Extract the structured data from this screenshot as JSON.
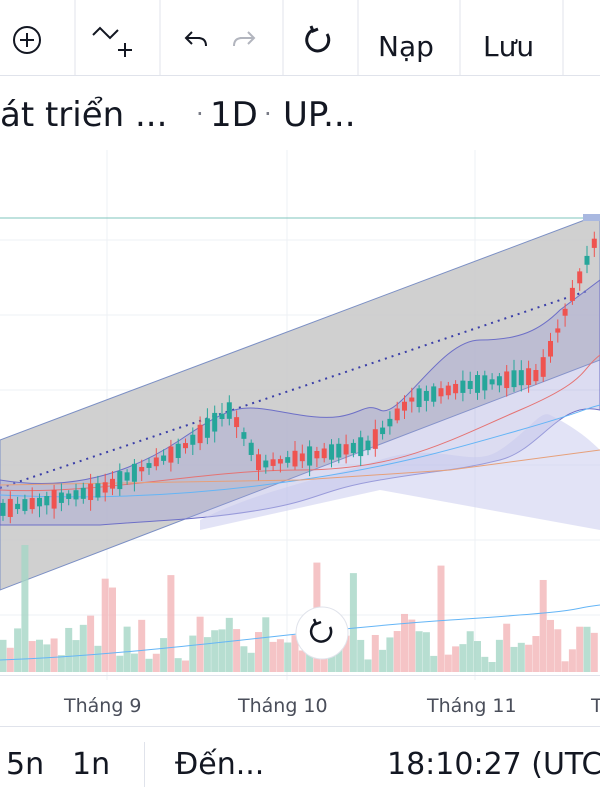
{
  "toolbar": {
    "load": "Nạp",
    "save": "Lưu"
  },
  "header": {
    "symbol": "át triển ...",
    "interval": "1D",
    "extra": "UP..."
  },
  "time_axis": [
    "Tháng 9",
    "Tháng 10",
    "Tháng 11",
    "T"
  ],
  "footer": {
    "range_a": "5n",
    "range_b": "1n",
    "goto": "Đến...",
    "clock": "18:10:27 (UTC"
  }
}
